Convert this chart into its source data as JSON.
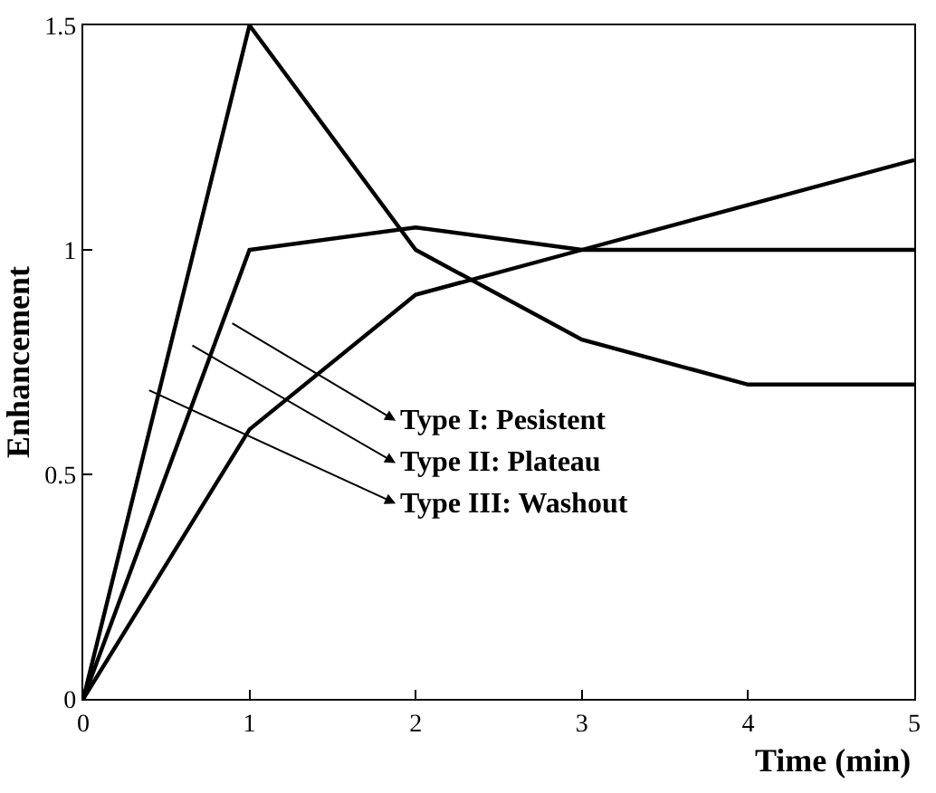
{
  "chart_data": {
    "type": "line",
    "xlabel": "Time (min)",
    "ylabel": "Enhancement",
    "x": [
      0,
      1,
      2,
      3,
      4,
      5
    ],
    "series": [
      {
        "color": "#000000",
        "values": [
          0,
          0.6,
          0.9,
          1.0,
          1.1,
          1.2
        ]
      },
      {
        "color": "#000000",
        "values": [
          0,
          1.0,
          1.05,
          1.0,
          1.0,
          1.0
        ]
      },
      {
        "color": "#000000",
        "values": [
          0,
          1.5,
          1.0,
          0.8,
          0.7,
          0.7
        ]
      }
    ],
    "annotations": [
      "Type I: Pesistent",
      "Type II: Plateau",
      "Type III: Washout"
    ],
    "xlim": [
      0,
      5
    ],
    "xticks": [
      0,
      1,
      2,
      3,
      4,
      5
    ],
    "ylim": [
      0,
      1.5
    ],
    "yticks": [
      0,
      0.5,
      1,
      1.5
    ],
    "marker": "none",
    "line_style": "solid"
  }
}
